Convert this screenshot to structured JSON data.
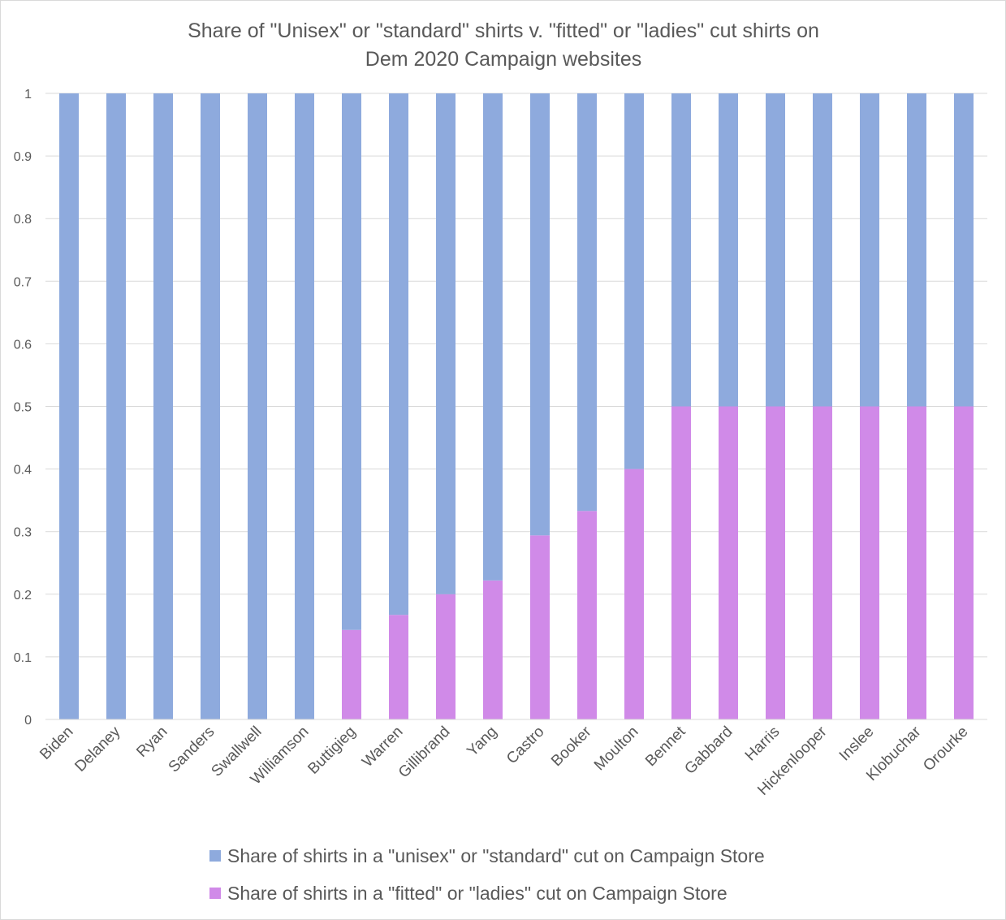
{
  "chart_data": {
    "type": "bar",
    "stacked": true,
    "title_lines": [
      "Share of \"Unisex\" or \"standard\" shirts v. \"fitted\" or \"ladies\" cut shirts on",
      "Dem 2020 Campaign websites"
    ],
    "categories": [
      "Biden",
      "Delaney",
      "Ryan",
      "Sanders",
      "Swallwell",
      "Williamson",
      "Buttigieg",
      "Warren",
      "Gillibrand",
      "Yang",
      "Castro",
      "Booker",
      "Moulton",
      "Bennet",
      "Gabbard",
      "Harris",
      "Hickenlooper",
      "Inslee",
      "Klobuchar",
      "Orourke"
    ],
    "series": [
      {
        "name": "Share of shirts in a \"fitted\" or \"ladies\" cut on Campaign Store",
        "color": "#d08ae8",
        "values": [
          0,
          0,
          0,
          0,
          0,
          0,
          0.143,
          0.167,
          0.2,
          0.222,
          0.294,
          0.333,
          0.4,
          0.5,
          0.5,
          0.5,
          0.5,
          0.5,
          0.5,
          0.5
        ]
      },
      {
        "name": "Share of shirts in a \"unisex\" or \"standard\" cut on Campaign Store",
        "color": "#8eaadd",
        "values": [
          1,
          1,
          1,
          1,
          1,
          1,
          0.857,
          0.833,
          0.8,
          0.778,
          0.706,
          0.667,
          0.6,
          0.5,
          0.5,
          0.5,
          0.5,
          0.5,
          0.5,
          0.5
        ]
      }
    ],
    "y_ticks": [
      "0",
      "0.1",
      "0.2",
      "0.3",
      "0.4",
      "0.5",
      "0.6",
      "0.7",
      "0.8",
      "0.9",
      "1"
    ],
    "ylim": [
      0,
      1
    ],
    "grid": true,
    "legend_placement": "bottom",
    "legend_order": [
      1,
      0
    ]
  }
}
